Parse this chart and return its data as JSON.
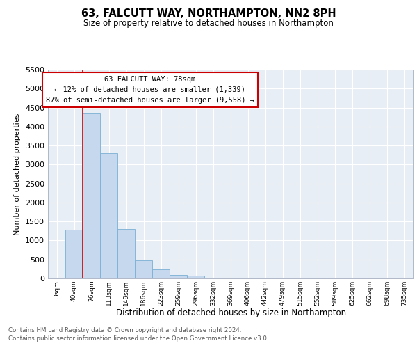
{
  "title": "63, FALCUTT WAY, NORTHAMPTON, NN2 8PH",
  "subtitle": "Size of property relative to detached houses in Northampton",
  "xlabel": "Distribution of detached houses by size in Northampton",
  "ylabel": "Number of detached properties",
  "footnote1": "Contains HM Land Registry data © Crown copyright and database right 2024.",
  "footnote2": "Contains public sector information licensed under the Open Government Licence v3.0.",
  "annotation_title": "63 FALCUTT WAY: 78sqm",
  "annotation_line1": "← 12% of detached houses are smaller (1,339)",
  "annotation_line2": "87% of semi-detached houses are larger (9,558) →",
  "bar_color": "#c5d8ed",
  "bar_edge_color": "#7bafd4",
  "bg_color": "#e8eef5",
  "gridcolor": "#ffffff",
  "vline_color": "#cc0000",
  "annotation_box_edge": "#cc0000",
  "categories": [
    "3sqm",
    "40sqm",
    "76sqm",
    "113sqm",
    "149sqm",
    "186sqm",
    "223sqm",
    "259sqm",
    "296sqm",
    "332sqm",
    "369sqm",
    "406sqm",
    "442sqm",
    "479sqm",
    "515sqm",
    "552sqm",
    "589sqm",
    "625sqm",
    "662sqm",
    "698sqm",
    "735sqm"
  ],
  "values": [
    0,
    1280,
    4350,
    3300,
    1300,
    480,
    230,
    100,
    70,
    0,
    0,
    0,
    0,
    0,
    0,
    0,
    0,
    0,
    0,
    0,
    0
  ],
  "ylim": [
    0,
    5500
  ],
  "yticks": [
    0,
    500,
    1000,
    1500,
    2000,
    2500,
    3000,
    3500,
    4000,
    4500,
    5000,
    5500
  ],
  "vline_index": 1.5
}
